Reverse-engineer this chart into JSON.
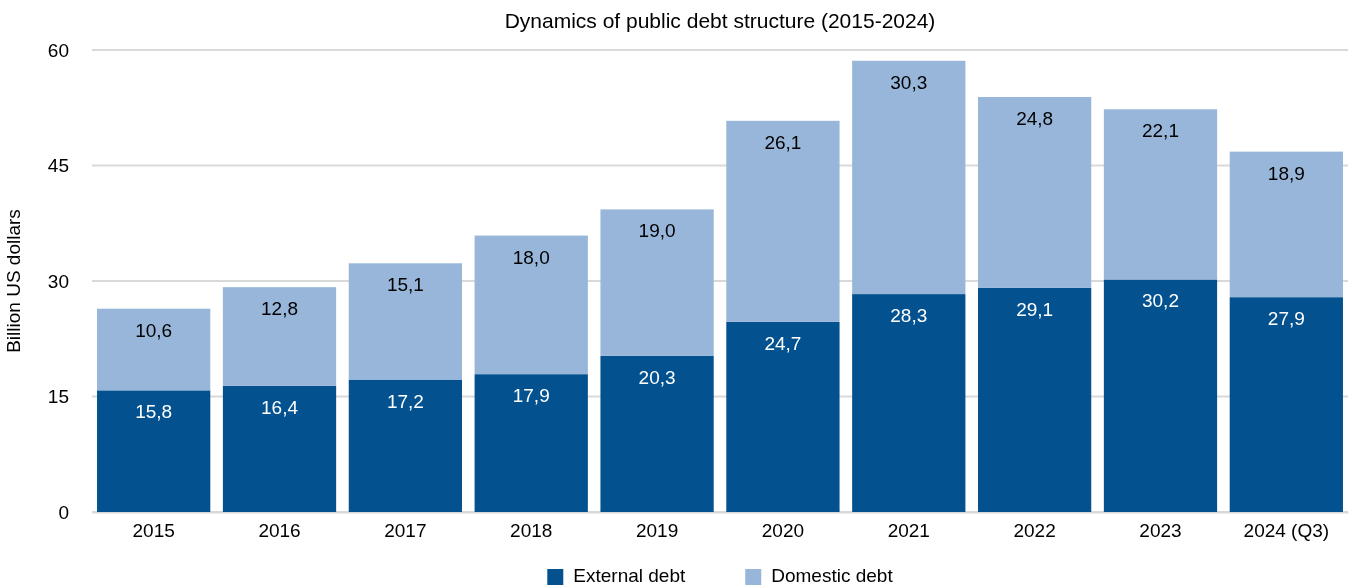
{
  "chart_data": {
    "type": "bar",
    "title": "Dynamics of public debt structure (2015-2024)",
    "ylabel": "Billion US dollars",
    "categories": [
      "2015",
      "2016",
      "2017",
      "2018",
      "2019",
      "2020",
      "2021",
      "2022",
      "2023",
      "2024 (Q3)"
    ],
    "stacked": true,
    "ylim": [
      0,
      60
    ],
    "yticks": [
      0,
      15,
      30,
      45,
      60
    ],
    "grid": "y",
    "legend": "bottom",
    "series": [
      {
        "name": "External debt",
        "color": "#03528f",
        "values": [
          15.8,
          16.4,
          17.2,
          17.9,
          20.3,
          24.7,
          28.3,
          29.1,
          30.2,
          27.9
        ],
        "value_labels": [
          "15,8",
          "16,4",
          "17,2",
          "17,9",
          "20,3",
          "24,7",
          "28,3",
          "29,1",
          "30,2",
          "27,9"
        ]
      },
      {
        "name": "Domestic debt",
        "color": "#97b6d9",
        "values": [
          10.6,
          12.8,
          15.1,
          18.0,
          19.0,
          26.1,
          30.3,
          24.8,
          22.1,
          18.9
        ],
        "value_labels": [
          "10,6",
          "12,8",
          "15,1",
          "18,0",
          "19,0",
          "26,1",
          "30,3",
          "24,8",
          "22,1",
          "18,9"
        ]
      }
    ]
  }
}
